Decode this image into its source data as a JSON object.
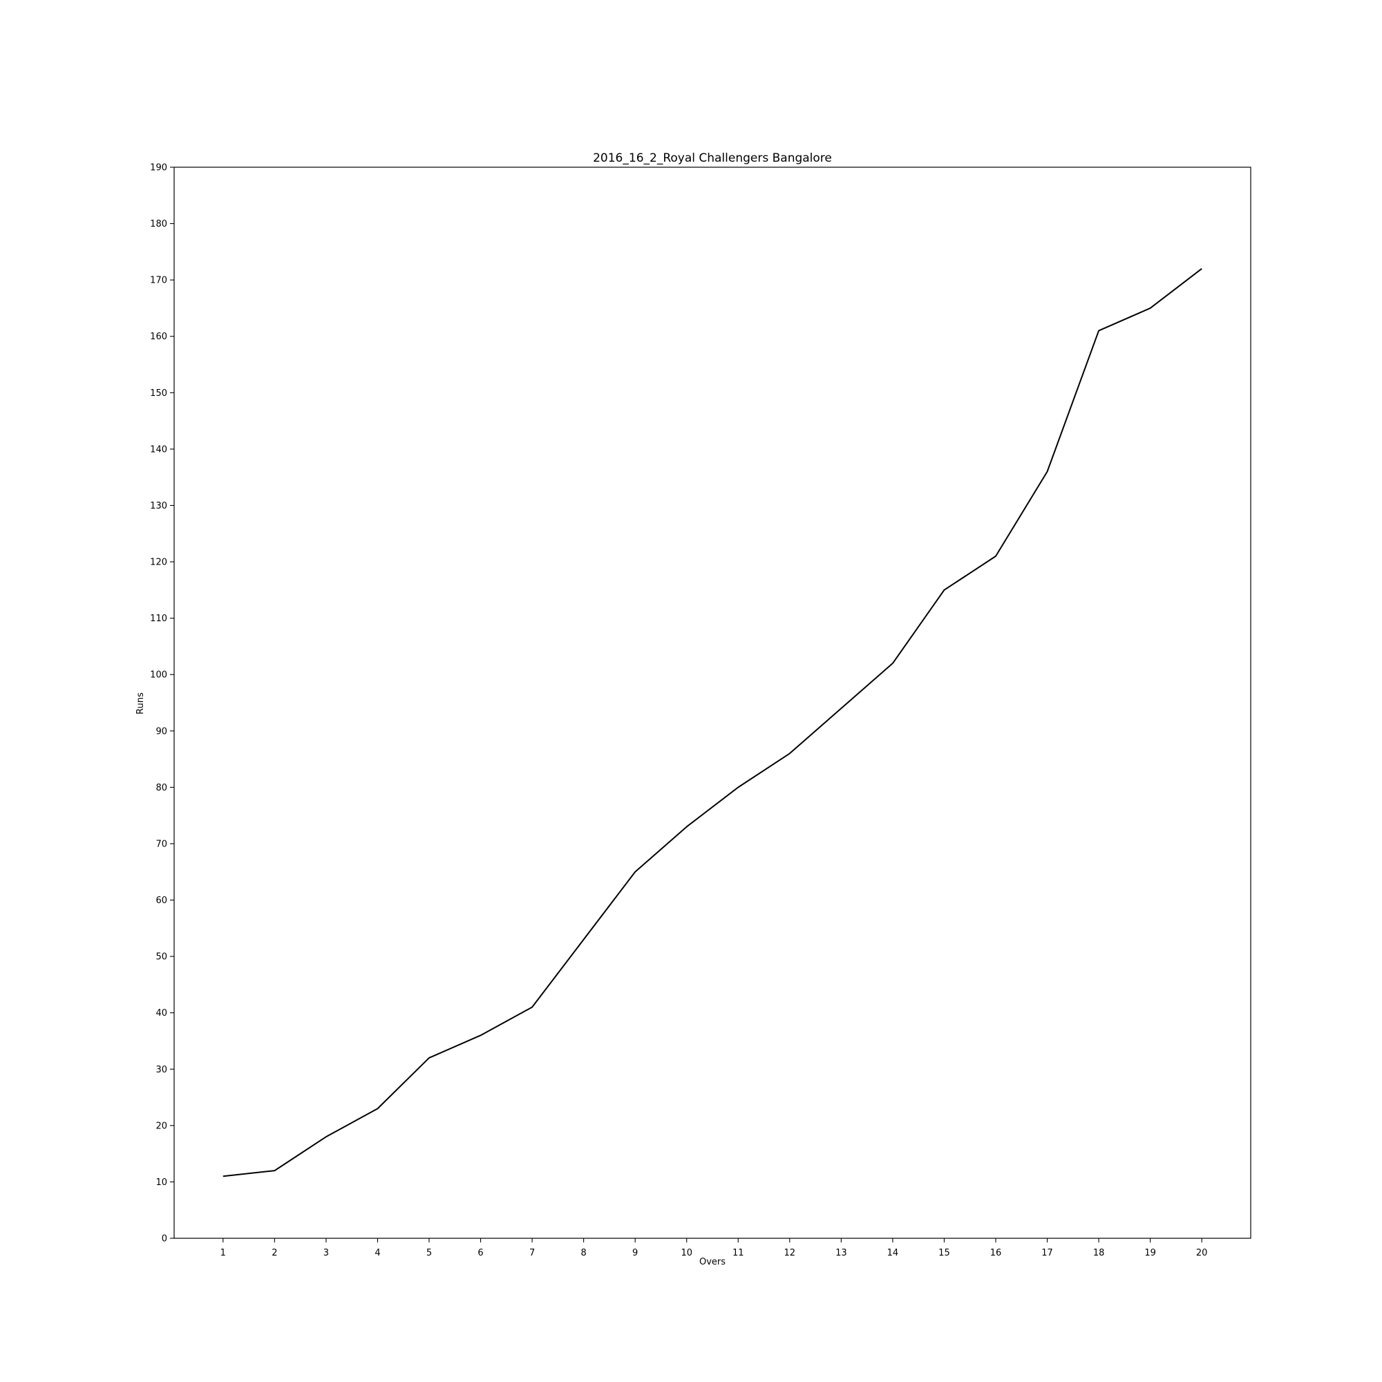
{
  "chart_data": {
    "type": "line",
    "title": "2016_16_2_Royal Challengers Bangalore",
    "xlabel": "Overs",
    "ylabel": "Runs",
    "x": [
      1,
      2,
      3,
      4,
      5,
      6,
      7,
      8,
      9,
      10,
      11,
      12,
      13,
      14,
      15,
      16,
      17,
      18,
      19,
      20
    ],
    "xticks": [
      "1",
      "2",
      "3",
      "4",
      "5",
      "6",
      "7",
      "8",
      "9",
      "10",
      "11",
      "12",
      "13",
      "14",
      "15",
      "16",
      "17",
      "18",
      "19",
      "20"
    ],
    "yticks": [
      "0",
      "10",
      "20",
      "30",
      "40",
      "50",
      "60",
      "70",
      "80",
      "90",
      "100",
      "110",
      "120",
      "130",
      "140",
      "150",
      "160",
      "170",
      "180",
      "190"
    ],
    "xlim": [
      0.05,
      20.95
    ],
    "ylim": [
      0,
      190
    ],
    "grid": false,
    "legend": "none",
    "series": [
      {
        "values": [
          11,
          12,
          18,
          23,
          32,
          36,
          41,
          53,
          65,
          73,
          80,
          86,
          94,
          102,
          115,
          121,
          136,
          161,
          165,
          172
        ],
        "color": "#000000"
      }
    ]
  }
}
